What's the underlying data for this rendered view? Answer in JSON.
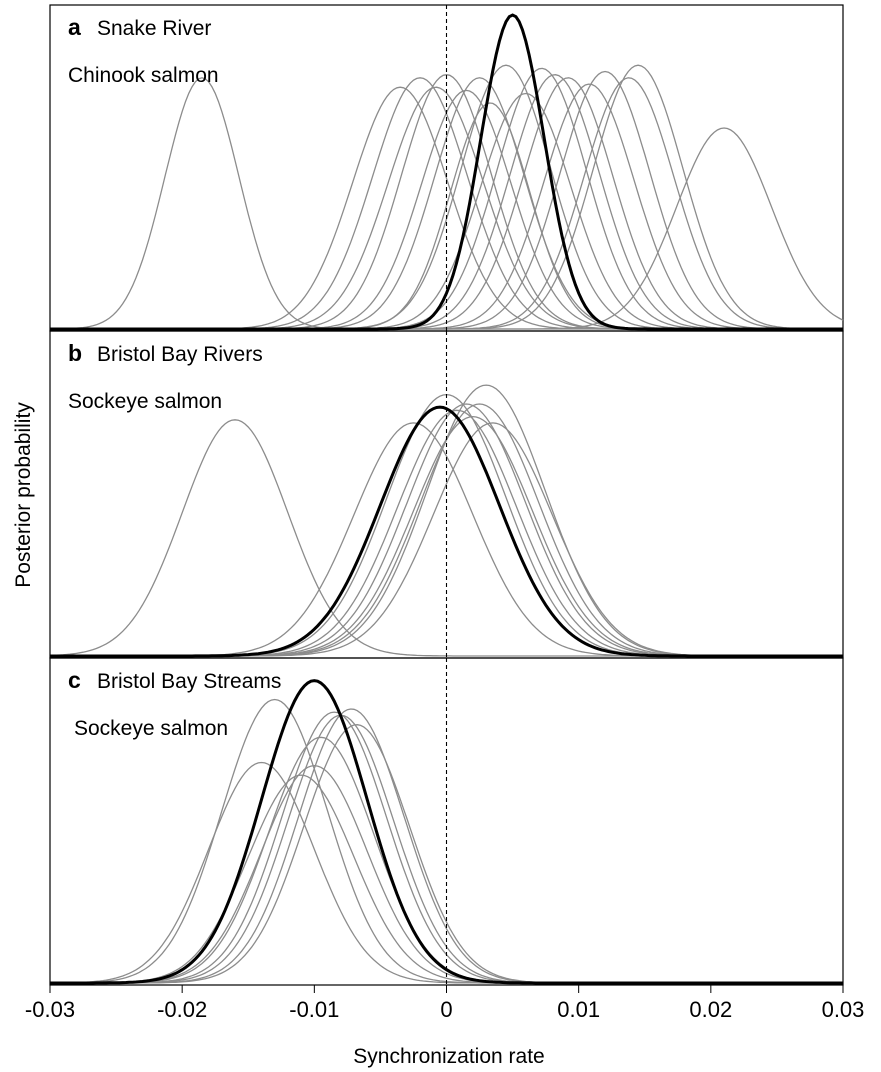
{
  "chart_data": {
    "type": "line",
    "xlabel": "Synchronization rate",
    "ylabel": "Posterior probability",
    "xlim": [
      -0.03,
      0.03
    ],
    "xticks": [
      "-0.03",
      "-0.02",
      "-0.01",
      "0",
      "0.01",
      "0.02",
      "0.03"
    ],
    "reference_line": {
      "x": 0,
      "style": "dashed"
    },
    "panels": [
      {
        "letter": "a",
        "title": "Snake River",
        "species": "Chinook salmon",
        "highlight": {
          "mean": 0.005,
          "sd": 0.0024,
          "peak": 1.0,
          "style": "bold-black"
        },
        "curves": [
          {
            "mean": -0.0185,
            "sd": 0.0028,
            "peak": 0.8
          },
          {
            "mean": -0.0035,
            "sd": 0.0036,
            "peak": 0.77
          },
          {
            "mean": -0.002,
            "sd": 0.0036,
            "peak": 0.8
          },
          {
            "mean": -0.0008,
            "sd": 0.0036,
            "peak": 0.77
          },
          {
            "mean": 0.0,
            "sd": 0.0034,
            "peak": 0.81
          },
          {
            "mean": 0.0015,
            "sd": 0.0034,
            "peak": 0.76
          },
          {
            "mean": 0.0025,
            "sd": 0.0034,
            "peak": 0.8
          },
          {
            "mean": 0.0033,
            "sd": 0.003,
            "peak": 0.72
          },
          {
            "mean": 0.0045,
            "sd": 0.0034,
            "peak": 0.84
          },
          {
            "mean": 0.006,
            "sd": 0.0034,
            "peak": 0.75
          },
          {
            "mean": 0.0072,
            "sd": 0.0034,
            "peak": 0.83
          },
          {
            "mean": 0.0082,
            "sd": 0.0034,
            "peak": 0.81
          },
          {
            "mean": 0.0092,
            "sd": 0.0034,
            "peak": 0.8
          },
          {
            "mean": 0.0108,
            "sd": 0.0034,
            "peak": 0.78
          },
          {
            "mean": 0.012,
            "sd": 0.0034,
            "peak": 0.82
          },
          {
            "mean": 0.0138,
            "sd": 0.0034,
            "peak": 0.8
          },
          {
            "mean": 0.0145,
            "sd": 0.0034,
            "peak": 0.84
          },
          {
            "mean": 0.021,
            "sd": 0.0036,
            "peak": 0.64
          }
        ]
      },
      {
        "letter": "b",
        "title": "Bristol Bay Rivers",
        "species": "Sockeye salmon",
        "highlight": {
          "mean": -0.0005,
          "sd": 0.0045,
          "peak": 0.79,
          "style": "bold-black"
        },
        "curves": [
          {
            "mean": -0.016,
            "sd": 0.004,
            "peak": 0.75
          },
          {
            "mean": -0.0025,
            "sd": 0.0045,
            "peak": 0.74
          },
          {
            "mean": 0.0,
            "sd": 0.0045,
            "peak": 0.83
          },
          {
            "mean": 0.0008,
            "sd": 0.0045,
            "peak": 0.78
          },
          {
            "mean": 0.0015,
            "sd": 0.0045,
            "peak": 0.8
          },
          {
            "mean": 0.002,
            "sd": 0.0045,
            "peak": 0.76
          },
          {
            "mean": 0.0025,
            "sd": 0.0045,
            "peak": 0.8
          },
          {
            "mean": 0.003,
            "sd": 0.0045,
            "peak": 0.86
          },
          {
            "mean": 0.0035,
            "sd": 0.0045,
            "peak": 0.74
          }
        ]
      },
      {
        "letter": "c",
        "title": "Bristol Bay Streams",
        "species": "Sockeye salmon",
        "highlight": {
          "mean": -0.01,
          "sd": 0.004,
          "peak": 0.96,
          "style": "bold-black"
        },
        "curves": [
          {
            "mean": -0.014,
            "sd": 0.004,
            "peak": 0.7
          },
          {
            "mean": -0.013,
            "sd": 0.004,
            "peak": 0.9
          },
          {
            "mean": -0.011,
            "sd": 0.004,
            "peak": 0.66
          },
          {
            "mean": -0.01,
            "sd": 0.004,
            "peak": 0.69
          },
          {
            "mean": -0.0095,
            "sd": 0.004,
            "peak": 0.78
          },
          {
            "mean": -0.0085,
            "sd": 0.004,
            "peak": 0.86
          },
          {
            "mean": -0.008,
            "sd": 0.004,
            "peak": 0.85
          },
          {
            "mean": -0.0072,
            "sd": 0.004,
            "peak": 0.87
          },
          {
            "mean": -0.0068,
            "sd": 0.004,
            "peak": 0.82
          }
        ]
      }
    ],
    "colors": {
      "curve": "#8c8c8c",
      "highlight": "#000000",
      "frame": "#000000"
    }
  }
}
